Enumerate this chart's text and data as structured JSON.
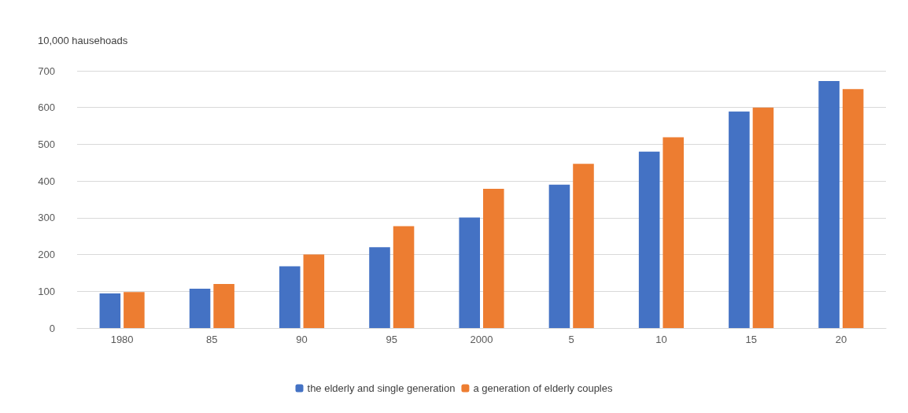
{
  "chart_data": {
    "type": "bar",
    "ylabel": "10,000 hausehoads",
    "categories": [
      "1980",
      "85",
      "90",
      "95",
      "2000",
      "5",
      "10",
      "15",
      "20"
    ],
    "series": [
      {
        "name": "the elderly and single generation",
        "color": "#4472c4",
        "values": [
          94,
          107,
          168,
          220,
          301,
          390,
          480,
          589,
          672
        ]
      },
      {
        "name": "a generation of elderly couples",
        "color": "#ed7d31",
        "values": [
          98,
          120,
          200,
          277,
          379,
          447,
          519,
          600,
          650
        ]
      }
    ],
    "ylim": [
      0,
      700
    ],
    "yticks": [
      0,
      100,
      200,
      300,
      400,
      500,
      600,
      700
    ],
    "grid": "y",
    "legend": "bottom"
  }
}
